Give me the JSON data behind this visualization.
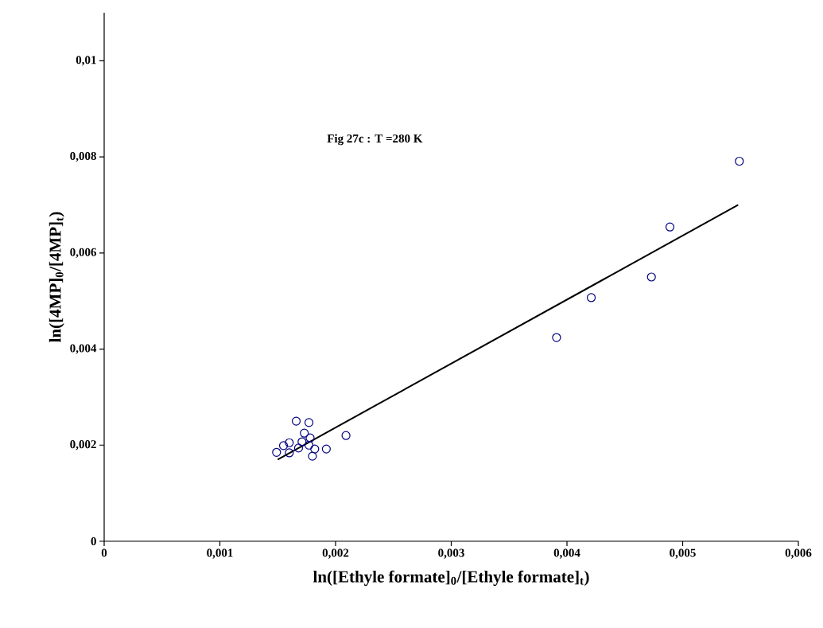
{
  "chart_data": {
    "type": "scatter",
    "xlabel": "ln([Ethyle formate]$_{0}$/[Ethyle formate]$_{t}$)",
    "ylabel": "ln([4MP]$_{0}$/[4MP]$_{t}$)",
    "annotations": [
      "Fig 27c : T =280 K"
    ],
    "xlim": [
      0,
      0.006
    ],
    "ylim": [
      0,
      0.011
    ],
    "xticks": [
      0,
      {
        "value": 0.001,
        "label": "0,001"
      },
      {
        "value": 0.002,
        "label": "0,002"
      },
      {
        "value": 0.003,
        "label": "0,003"
      },
      {
        "value": 0.004,
        "label": "0,004"
      },
      {
        "value": 0.005,
        "label": "0,005"
      },
      {
        "value": 0.006,
        "label": "0,006"
      }
    ],
    "yticks": [
      0,
      {
        "value": 0.002,
        "label": "0,002"
      },
      {
        "value": 0.004,
        "label": "0,004"
      },
      {
        "value": 0.006,
        "label": "0,006"
      },
      {
        "value": 0.008,
        "label": "0,008"
      },
      {
        "value": 0.01,
        "label": "0,01"
      }
    ],
    "grid": false,
    "series": [
      {
        "color": "#000080",
        "marker": "circle",
        "x": [
          0.00149,
          0.00155,
          0.0016,
          0.0016,
          0.00166,
          0.00177,
          0.00173,
          0.00168,
          0.00171,
          0.00178,
          0.00177,
          0.00182,
          0.0018,
          0.00192,
          0.00209,
          0.00391,
          0.00421,
          0.00473,
          0.00489,
          0.00549
        ],
        "values": [
          0.00185,
          0.00199,
          0.00205,
          0.00184,
          0.0025,
          0.00247,
          0.00225,
          0.00194,
          0.00207,
          0.00215,
          0.002,
          0.00192,
          0.00177,
          0.00192,
          0.0022,
          0.00424,
          0.00507,
          0.0055,
          0.00654,
          0.00791
        ]
      },
      {
        "type": "line",
        "color": "#000000",
        "marker": "none",
        "x": [
          0.0015,
          0.00548
        ],
        "values": [
          0.0017,
          0.007
        ]
      }
    ]
  }
}
